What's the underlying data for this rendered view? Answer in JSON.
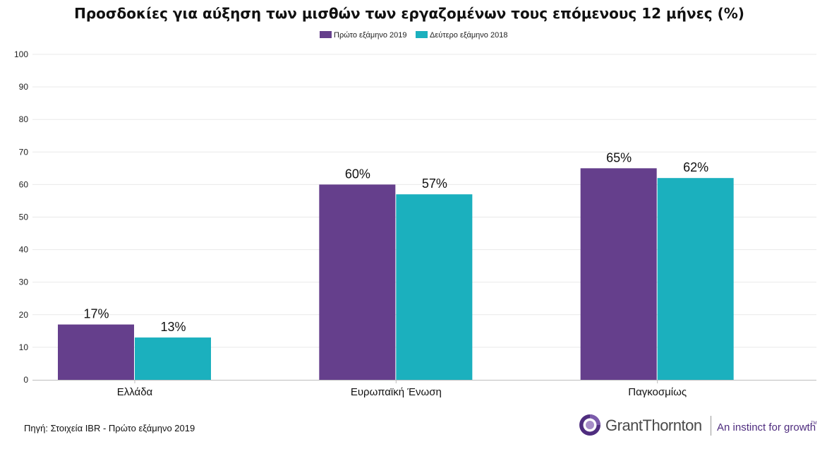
{
  "chart_data": {
    "type": "bar",
    "title": "Προσδοκίες για αύξηση των μισθών των εργαζομένων τους επόμενους 12 μήνες (%)",
    "categories": [
      "Ελλάδα",
      "Ευρωπαϊκή Ένωση",
      "Παγκοσμίως"
    ],
    "series": [
      {
        "name": "Πρώτο εξάμηνο 2019",
        "values": [
          17,
          60,
          65
        ],
        "color": "#653F8C"
      },
      {
        "name": "Δεύτερο εξάμηνο 2018",
        "values": [
          13,
          57,
          62
        ],
        "color": "#1BB0BE"
      }
    ],
    "data_labels": [
      [
        "17%",
        "60%",
        "65%"
      ],
      [
        "13%",
        "57%",
        "62%"
      ]
    ],
    "yticks": [
      "0",
      "10",
      "20",
      "30",
      "40",
      "50",
      "60",
      "70",
      "80",
      "90",
      "100"
    ],
    "ylim": [
      0,
      100
    ],
    "grid": true,
    "legend_position": "top-center"
  },
  "footer": {
    "source": "Πηγή: Στοιχεία IBR - Πρώτο εξάμηνο 2019"
  },
  "logo": {
    "brand": "GrantThornton",
    "tagline": "An instinct for growth",
    "trademark": "TM",
    "color": "#4F2D7F"
  }
}
